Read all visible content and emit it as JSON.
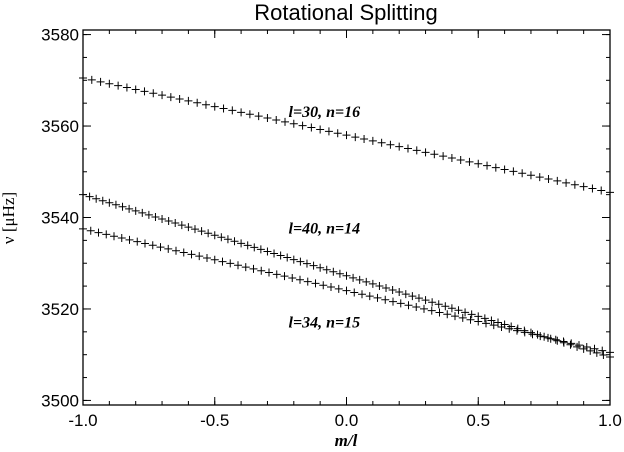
{
  "chart_data": {
    "type": "scatter",
    "title": "Rotational Splitting",
    "xlabel": "m/l",
    "ylabel": "ν [μHz]",
    "xlim": [
      -1.0,
      1.0
    ],
    "ylim": [
      3499,
      3581
    ],
    "x_ticks": [
      "-1.0",
      "-0.5",
      "0.0",
      "0.5",
      "1.0"
    ],
    "y_ticks": [
      "3500",
      "3520",
      "3540",
      "3560",
      "3580"
    ],
    "grid": false,
    "marker": "plus",
    "color": "#000000",
    "series": [
      {
        "name": "l=30, n=16",
        "l": 30,
        "start": 3570.5,
        "end": 3545.5
      },
      {
        "name": "l=40, n=14",
        "l": 40,
        "start": 3545.0,
        "end": 3509.5
      },
      {
        "name": "l=34, n=15",
        "l": 34,
        "start": 3537.5,
        "end": 3510.5
      }
    ],
    "annotations": [
      {
        "text": "l=30, n=16",
        "x": -0.22,
        "y": 3562.0
      },
      {
        "text": "l=40, n=14",
        "x": -0.22,
        "y": 3536.5
      },
      {
        "text": "l=34, n=15",
        "x": -0.22,
        "y": 3516.0
      }
    ]
  }
}
